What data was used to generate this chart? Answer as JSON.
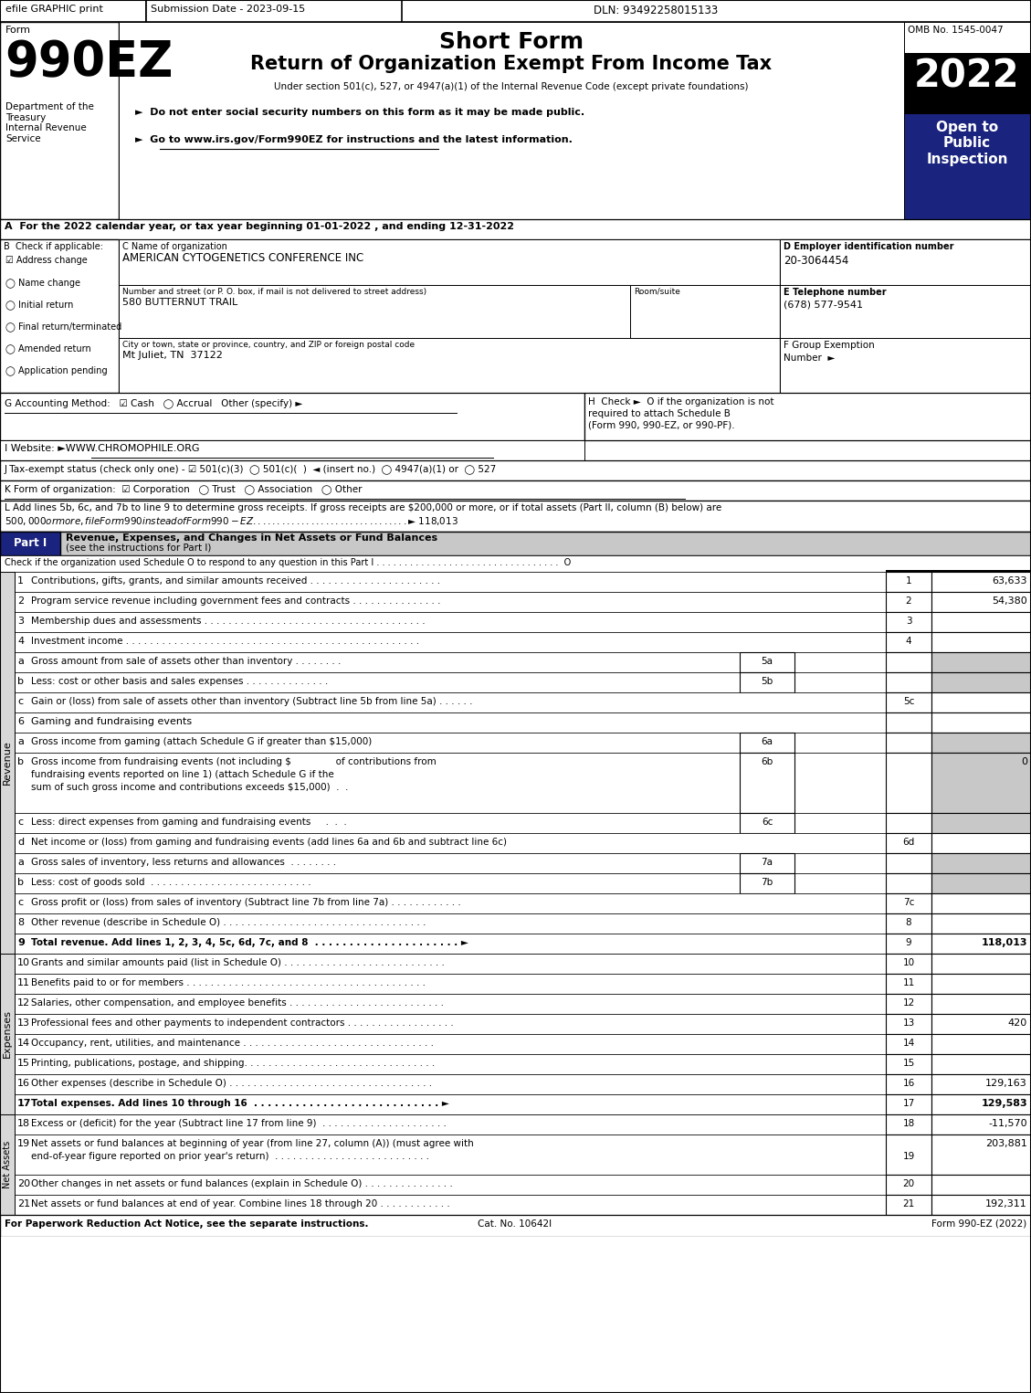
{
  "efile_text": "efile GRAPHIC print",
  "submission_text": "Submission Date - 2023-09-15",
  "dln_text": "DLN: 93492258015133",
  "form_label": "Form",
  "form_number": "990EZ",
  "form_title": "Short Form",
  "form_subtitle": "Return of Organization Exempt From Income Tax",
  "under_section": "Under section 501(c), 527, or 4947(a)(1) of the Internal Revenue Code (except private foundations)",
  "bullet1": "►  Do not enter social security numbers on this form as it may be made public.",
  "bullet2": "►  Go to www.irs.gov/Form990EZ for instructions and the latest information.",
  "bullet2_url": "www.irs.gov/Form990EZ",
  "omb": "OMB No. 1545-0047",
  "year": "2022",
  "open_to": "Open to\nPublic\nInspection",
  "dept_text": "Department of the\nTreasury\nInternal Revenue\nService",
  "section_a": "A  For the 2022 calendar year, or tax year beginning 01-01-2022 , and ending 12-31-2022",
  "b_label": "B  Check if applicable:",
  "check_items": [
    [
      true,
      "Address change"
    ],
    [
      false,
      "Name change"
    ],
    [
      false,
      "Initial return"
    ],
    [
      false,
      "Final return/terminated"
    ],
    [
      false,
      "Amended return"
    ],
    [
      false,
      "Application pending"
    ]
  ],
  "c_label": "C Name of organization",
  "org_name": "AMERICAN CYTOGENETICS CONFERENCE INC",
  "address_label": "Number and street (or P. O. box, if mail is not delivered to street address)",
  "room_label": "Room/suite",
  "address": "580 BUTTERNUT TRAIL",
  "city_label": "City or town, state or province, country, and ZIP or foreign postal code",
  "city": "Mt Juliet, TN  37122",
  "d_label": "D Employer identification number",
  "ein": "20-3064454",
  "e_label": "E Telephone number",
  "phone": "(678) 577-9541",
  "f_label": "F Group Exemption",
  "f_label2": "Number  ►",
  "g_line": "G Accounting Method:   ☑ Cash   ◯ Accrual   Other (specify) ►",
  "g_underline": true,
  "h_line1": "H  Check ►  O if the organization is not",
  "h_line2": "required to attach Schedule B",
  "h_line3": "(Form 990, 990-EZ, or 990-PF).",
  "i_line": "I Website: ►WWW.CHROMOPHILE.ORG",
  "j_line": "J Tax-exempt status (check only one) - ☑ 501(c)(3)  ◯ 501(c)(  )  ◄ (insert no.)  ◯ 4947(a)(1) or  ◯ 527",
  "k_line": "K Form of organization:  ☑ Corporation   ◯ Trust   ◯ Association   ◯ Other",
  "l_line1": "L Add lines 5b, 6c, and 7b to line 9 to determine gross receipts. If gross receipts are $200,000 or more, or if total assets (Part II, column (B) below) are",
  "l_line2": "$500,000 or more, file Form 990 instead of Form 990-EZ . . . . . . . . . . . . . . . . . . . . . . . . . . . . . . . . ►$ 118,013",
  "part1_label": "Part I",
  "part1_title": "Revenue, Expenses, and Changes in Net Assets or Fund Balances",
  "part1_title2": "(see the instructions for Part I)",
  "part1_check": "Check if the organization used Schedule O to respond to any question in this Part I . . . . . . . . . . . . . . . . . . . . . . . . . . . . . . . . .  O",
  "revenue_rows": [
    {
      "num": "1",
      "sub": "",
      "label": "Contributions, gifts, grants, and similar amounts received . . . . . . . . . . . . . . . . . . . . . .",
      "col_label": "",
      "line_num": "1",
      "value": "63,633",
      "gray_right": false,
      "bold": false
    },
    {
      "num": "2",
      "sub": "",
      "label": "Program service revenue including government fees and contracts . . . . . . . . . . . . . . .",
      "col_label": "",
      "line_num": "2",
      "value": "54,380",
      "gray_right": false,
      "bold": false
    },
    {
      "num": "3",
      "sub": "",
      "label": "Membership dues and assessments . . . . . . . . . . . . . . . . . . . . . . . . . . . . . . . . . . . . .",
      "col_label": "",
      "line_num": "3",
      "value": "",
      "gray_right": false,
      "bold": false
    },
    {
      "num": "4",
      "sub": "",
      "label": "Investment income . . . . . . . . . . . . . . . . . . . . . . . . . . . . . . . . . . . . . . . . . . . . . . . . .",
      "col_label": "",
      "line_num": "4",
      "value": "",
      "gray_right": false,
      "bold": false
    },
    {
      "num": "5a",
      "sub": "a",
      "label": "Gross amount from sale of assets other than inventory . . . . . . . .",
      "col_label": "5a",
      "line_num": "",
      "value": "",
      "gray_right": true,
      "bold": false
    },
    {
      "num": "5b",
      "sub": "b",
      "label": "Less: cost or other basis and sales expenses . . . . . . . . . . . . . .",
      "col_label": "5b",
      "line_num": "",
      "value": "",
      "gray_right": true,
      "bold": false
    },
    {
      "num": "5c",
      "sub": "c",
      "label": "Gain or (loss) from sale of assets other than inventory (Subtract line 5b from line 5a) . . . . . .",
      "col_label": "",
      "line_num": "5c",
      "value": "",
      "gray_right": false,
      "bold": false
    },
    {
      "num": "6",
      "sub": "",
      "label": "Gaming and fundraising events",
      "col_label": "",
      "line_num": "",
      "value": "",
      "gray_right": false,
      "bold": false,
      "header_only": true
    },
    {
      "num": "6a",
      "sub": "a",
      "label": "Gross income from gaming (attach Schedule G if greater than $15,000)",
      "col_label": "6a",
      "line_num": "",
      "value": "",
      "gray_right": true,
      "bold": false
    },
    {
      "num": "6b",
      "sub": "b",
      "label": "Gross income from fundraising events (not including $               of contributions from\nfundraising events reported on line 1) (attach Schedule G if the\nsum of such gross income and contributions exceeds $15,000)  .  .",
      "col_label": "6b",
      "line_num": "",
      "value": "0",
      "gray_right": true,
      "bold": false,
      "multiline": true
    },
    {
      "num": "6c",
      "sub": "c",
      "label": "Less: direct expenses from gaming and fundraising events     .  .  .",
      "col_label": "6c",
      "line_num": "",
      "value": "",
      "gray_right": true,
      "bold": false
    },
    {
      "num": "6d",
      "sub": "d",
      "label": "Net income or (loss) from gaming and fundraising events (add lines 6a and 6b and subtract line 6c)",
      "col_label": "",
      "line_num": "6d",
      "value": "",
      "gray_right": false,
      "bold": false
    },
    {
      "num": "7a",
      "sub": "a",
      "label": "Gross sales of inventory, less returns and allowances  . . . . . . . .",
      "col_label": "7a",
      "line_num": "",
      "value": "",
      "gray_right": true,
      "bold": false
    },
    {
      "num": "7b",
      "sub": "b",
      "label": "Less: cost of goods sold  . . . . . . . . . . . . . . . . . . . . . . . . . . .",
      "col_label": "7b",
      "line_num": "",
      "value": "",
      "gray_right": true,
      "bold": false
    },
    {
      "num": "7c",
      "sub": "c",
      "label": "Gross profit or (loss) from sales of inventory (Subtract line 7b from line 7a) . . . . . . . . . . . .",
      "col_label": "",
      "line_num": "7c",
      "value": "",
      "gray_right": false,
      "bold": false
    },
    {
      "num": "8",
      "sub": "",
      "label": "Other revenue (describe in Schedule O) . . . . . . . . . . . . . . . . . . . . . . . . . . . . . . . . . .",
      "col_label": "",
      "line_num": "8",
      "value": "",
      "gray_right": false,
      "bold": false
    },
    {
      "num": "9",
      "sub": "",
      "label": "Total revenue. Add lines 1, 2, 3, 4, 5c, 6d, 7c, and 8  . . . . . . . . . . . . . . . . . . . . . ►",
      "col_label": "",
      "line_num": "9",
      "value": "118,013",
      "gray_right": false,
      "bold": true
    }
  ],
  "expense_rows": [
    {
      "num": "10",
      "label": "Grants and similar amounts paid (list in Schedule O) . . . . . . . . . . . . . . . . . . . . . . . . . . .",
      "line_num": "10",
      "value": "",
      "bold": false
    },
    {
      "num": "11",
      "label": "Benefits paid to or for members . . . . . . . . . . . . . . . . . . . . . . . . . . . . . . . . . . . . . . . .",
      "line_num": "11",
      "value": "",
      "bold": false
    },
    {
      "num": "12",
      "label": "Salaries, other compensation, and employee benefits . . . . . . . . . . . . . . . . . . . . . . . . . .",
      "line_num": "12",
      "value": "",
      "bold": false
    },
    {
      "num": "13",
      "label": "Professional fees and other payments to independent contractors . . . . . . . . . . . . . . . . . .",
      "line_num": "13",
      "value": "420",
      "bold": false
    },
    {
      "num": "14",
      "label": "Occupancy, rent, utilities, and maintenance . . . . . . . . . . . . . . . . . . . . . . . . . . . . . . . .",
      "line_num": "14",
      "value": "",
      "bold": false
    },
    {
      "num": "15",
      "label": "Printing, publications, postage, and shipping. . . . . . . . . . . . . . . . . . . . . . . . . . . . . . . .",
      "line_num": "15",
      "value": "",
      "bold": false
    },
    {
      "num": "16",
      "label": "Other expenses (describe in Schedule O) . . . . . . . . . . . . . . . . . . . . . . . . . . . . . . . . . .",
      "line_num": "16",
      "value": "129,163",
      "bold": false
    },
    {
      "num": "17",
      "label": "Total expenses. Add lines 10 through 16  . . . . . . . . . . . . . . . . . . . . . . . . . . . ►",
      "line_num": "17",
      "value": "129,583",
      "bold": true
    }
  ],
  "net_rows": [
    {
      "num": "18",
      "label": "Excess or (deficit) for the year (Subtract line 17 from line 9)  . . . . . . . . . . . . . . . . . . . . .",
      "line_num": "18",
      "value": "-11,570",
      "bold": false,
      "multiline": false
    },
    {
      "num": "19",
      "label": "Net assets or fund balances at beginning of year (from line 27, column (A)) (must agree with\nend-of-year figure reported on prior year's return)  . . . . . . . . . . . . . . . . . . . . . . . . . .",
      "line_num": "19",
      "value": "203,881",
      "bold": false,
      "multiline": true
    },
    {
      "num": "20",
      "label": "Other changes in net assets or fund balances (explain in Schedule O) . . . . . . . . . . . . . . .",
      "line_num": "20",
      "value": "",
      "bold": false,
      "multiline": false
    },
    {
      "num": "21",
      "label": "Net assets or fund balances at end of year. Combine lines 18 through 20 . . . . . . . . . . . .",
      "line_num": "21",
      "value": "192,311",
      "bold": false,
      "multiline": false
    }
  ],
  "footer_left": "For Paperwork Reduction Act Notice, see the separate instructions.",
  "footer_mid": "Cat. No. 10642I",
  "footer_right": "Form 990-EZ (2022)"
}
